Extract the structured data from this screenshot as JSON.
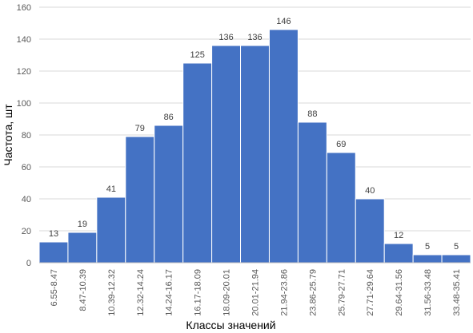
{
  "chart_data": {
    "type": "bar",
    "title": "",
    "xlabel": "Классы значений",
    "ylabel": "Частота, шт",
    "ylim": [
      0,
      160
    ],
    "yticks": [
      0,
      20,
      40,
      60,
      80,
      100,
      120,
      140,
      160
    ],
    "grid": true,
    "legend": "none",
    "bar_color": "#4472C4",
    "categories": [
      "6.55-8.47",
      "8.47-10.39",
      "10.39-12.32",
      "12.32-14.24",
      "14.24-16.17",
      "16.17-18.09",
      "18.09-20.01",
      "20.01-21.94",
      "21.94-23.86",
      "23.86-25.79",
      "25.79-27.71",
      "27.71-29.64",
      "29.64-31.56",
      "31.56-33.48",
      "33.48-35.41"
    ],
    "values": [
      13,
      19,
      41,
      79,
      86,
      125,
      136,
      136,
      146,
      88,
      69,
      40,
      12,
      5,
      5
    ]
  }
}
